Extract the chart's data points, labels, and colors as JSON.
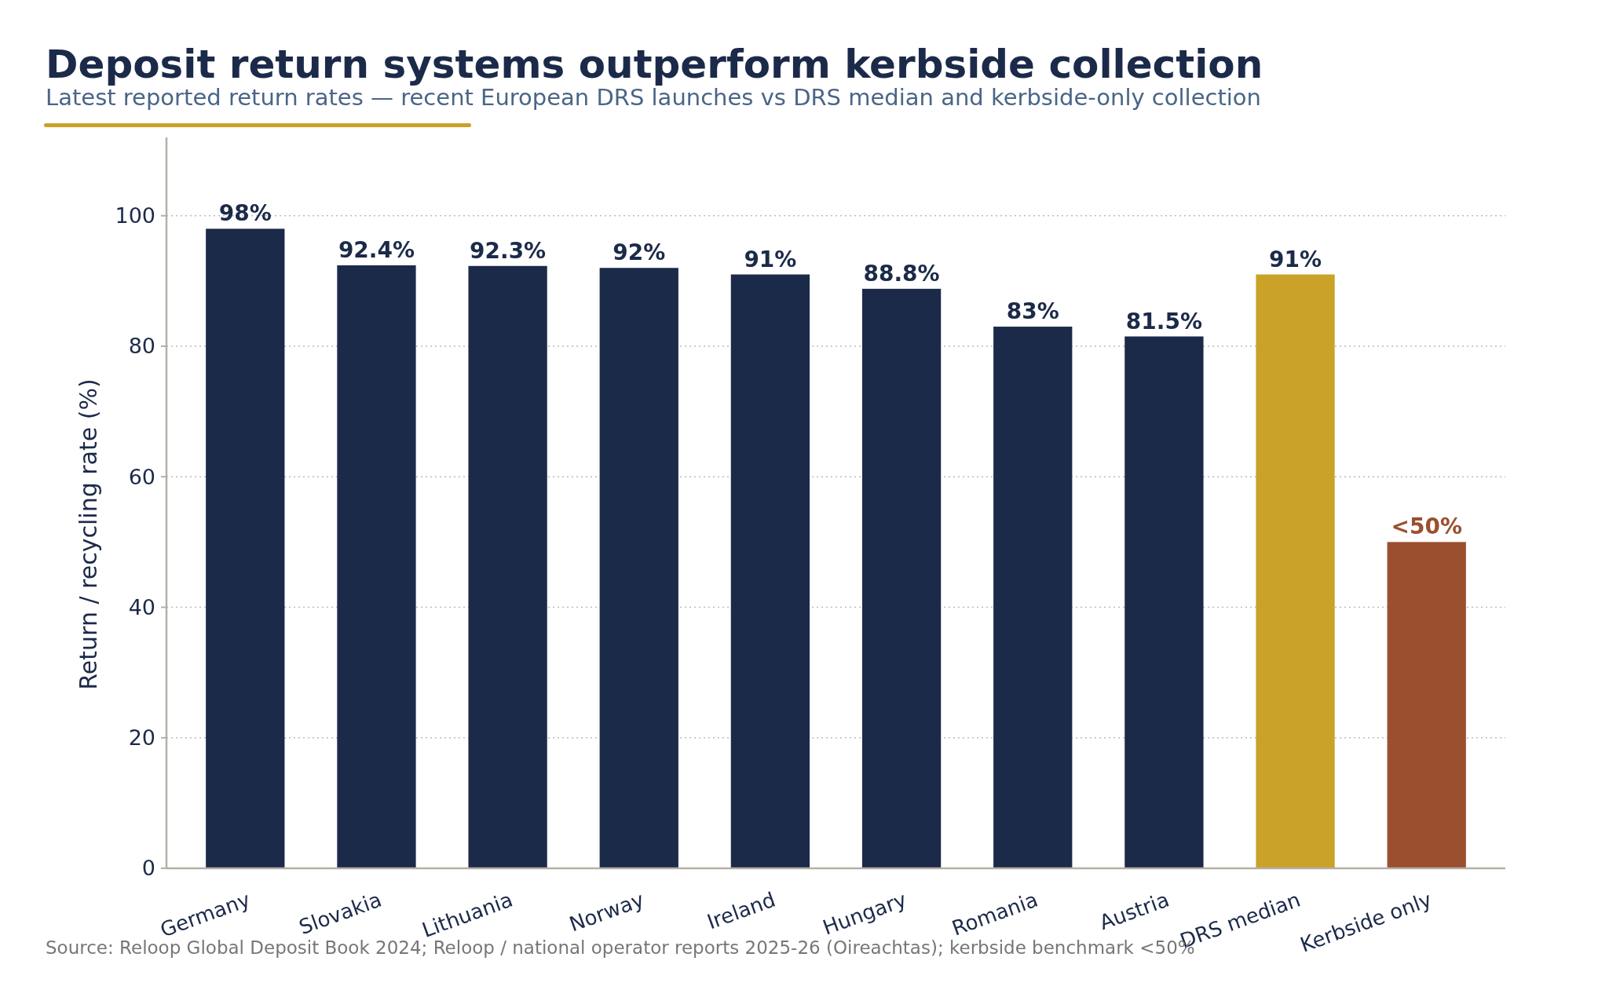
{
  "chart_data": {
    "type": "bar",
    "title": "Deposit return systems outperform kerbside collection",
    "subtitle": "Latest reported return rates — recent European DRS launches vs DRS median and kerbside-only collection",
    "ylabel": "Return / recycling rate (%)",
    "categories": [
      "Germany",
      "Slovakia",
      "Lithuania",
      "Norway",
      "Ireland",
      "Hungary",
      "Romania",
      "Austria",
      "DRS median",
      "Kerbside only"
    ],
    "values": [
      98,
      92.4,
      92.3,
      92,
      91,
      88.8,
      83,
      81.5,
      91,
      50
    ],
    "colors": [
      "#1c2a4a",
      "#1c2a4a",
      "#1c2a4a",
      "#1c2a4a",
      "#1c2a4a",
      "#1c2a4a",
      "#1c2a4a",
      "#1c2a4a",
      "#c9a227",
      "#9a4f2f"
    ],
    "value_labels": [
      "98%",
      "92.4%",
      "92.3%",
      "92%",
      "91%",
      "88.8%",
      "83%",
      "81.5%",
      "91%",
      "<50%"
    ],
    "ylim": [
      0,
      112
    ],
    "yticks": [
      0,
      20,
      40,
      60,
      80,
      100
    ],
    "grid": "y",
    "annotations": [
      "Source: Reloop Global Deposit Book 2024; Reloop / national operator reports 2025-26 (Oireachtas); kerbside benchmark <50%"
    ]
  }
}
